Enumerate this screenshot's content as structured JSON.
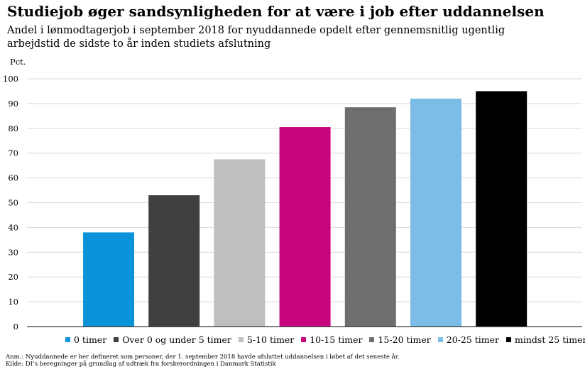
{
  "title": "Studiejob øger sandsynligheden for at være i job efter uddannelsen",
  "subtitle": "Andel i lønmodtagerjob i september 2018 for nyuddannede opdelt efter gennemsnitlig ugentlig arbejdstid de sidste to år inden studiets afslutning",
  "chart_data": {
    "type": "bar",
    "ylabel": "Pct.",
    "ylim": [
      0,
      100
    ],
    "yticks": [
      0,
      10,
      20,
      30,
      40,
      50,
      60,
      70,
      80,
      90,
      100
    ],
    "grid": true,
    "legend_position": "bottom",
    "series": [
      {
        "name": "0 timer",
        "value": 38,
        "color": "#0a93d8"
      },
      {
        "name": "Over 0 og under 5 timer",
        "value": 53,
        "color": "#404040"
      },
      {
        "name": "5-10 timer",
        "value": 67.5,
        "color": "#bfbfbf"
      },
      {
        "name": "10-15 timer",
        "value": 80.5,
        "color": "#c8037e"
      },
      {
        "name": "15-20 timer",
        "value": 88.5,
        "color": "#6e6e6e"
      },
      {
        "name": "20-25 timer",
        "value": 92,
        "color": "#7bbde6"
      },
      {
        "name": "mindst 25 timer",
        "value": 95,
        "color": "#000000"
      }
    ]
  },
  "notes": {
    "anm": "Anm.: Nyuddannede er her defineret som personer, der 1. september 2018 havde afsluttet uddannelsen i løbet af det seneste år.",
    "kilde": "Kilde: DI’s beregninger på grundlag af udtræk fra forskerordningen i Danmark Statistik"
  }
}
